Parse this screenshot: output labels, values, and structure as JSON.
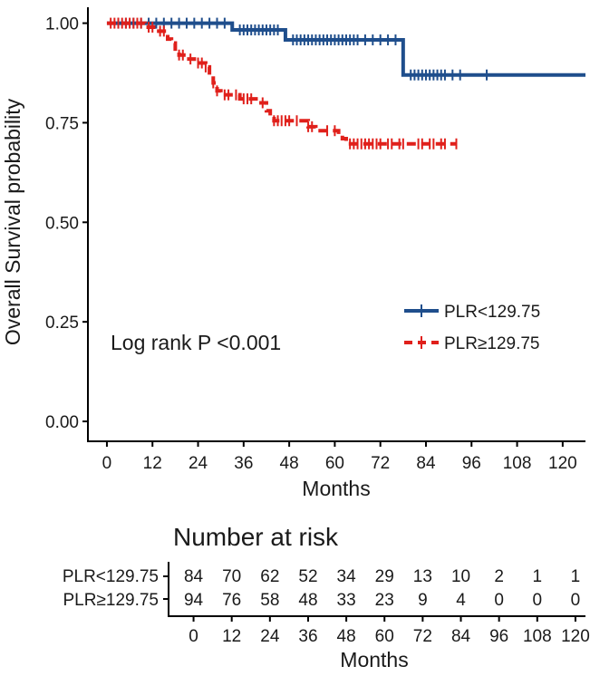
{
  "chart_data": {
    "type": "line",
    "subtype": "kaplan-meier",
    "title": "",
    "xlabel": "Months",
    "ylabel": "Overall Survival probability",
    "xlim": [
      -5,
      126
    ],
    "ylim": [
      -0.05,
      1.04
    ],
    "x_ticks": [
      0,
      12,
      24,
      36,
      48,
      60,
      72,
      84,
      96,
      108,
      120
    ],
    "y_ticks": [
      0.0,
      0.25,
      0.5,
      0.75,
      1.0
    ],
    "y_tick_labels": [
      "0.00",
      "0.25",
      "0.50",
      "0.75",
      "1.00"
    ],
    "annotation": "Log rank P <0.001",
    "legend_position": "right-middle",
    "series": [
      {
        "name": "PLR<129.75",
        "color": "#1f4e8c",
        "dash": "solid",
        "steps": [
          [
            0,
            1.0
          ],
          [
            33,
            0.983
          ],
          [
            47,
            0.958
          ],
          [
            78,
            0.87
          ],
          [
            126,
            0.87
          ]
        ],
        "censor": [
          3,
          5,
          7,
          9,
          11,
          13,
          15,
          17,
          19,
          21,
          23,
          25,
          27,
          29,
          31,
          35,
          36,
          37,
          38,
          39,
          40,
          41,
          42,
          43,
          44,
          45,
          49,
          50,
          51,
          52,
          53,
          54,
          55,
          56,
          57,
          58,
          59,
          60,
          61,
          62,
          63,
          64,
          65,
          66,
          68,
          70,
          72,
          74,
          76,
          80,
          81,
          82,
          83,
          84,
          85,
          86,
          87,
          88,
          89,
          91,
          93,
          100
        ]
      },
      {
        "name": "PLR≥129.75",
        "color": "#e0201b",
        "dash": "dashed",
        "steps": [
          [
            0,
            1.0
          ],
          [
            10,
            0.99
          ],
          [
            13,
            0.98
          ],
          [
            16,
            0.96
          ],
          [
            17,
            0.95
          ],
          [
            18,
            0.93
          ],
          [
            19,
            0.92
          ],
          [
            21,
            0.91
          ],
          [
            23,
            0.9
          ],
          [
            26,
            0.89
          ],
          [
            27,
            0.87
          ],
          [
            28,
            0.85
          ],
          [
            29,
            0.83
          ],
          [
            30,
            0.82
          ],
          [
            35,
            0.81
          ],
          [
            40,
            0.8
          ],
          [
            42,
            0.78
          ],
          [
            43,
            0.76
          ],
          [
            44,
            0.755
          ],
          [
            53,
            0.74
          ],
          [
            55,
            0.73
          ],
          [
            61,
            0.72
          ],
          [
            62,
            0.71
          ],
          [
            63,
            0.697
          ],
          [
            92,
            0.697
          ]
        ],
        "censor": [
          1,
          2,
          3,
          4,
          5,
          6,
          7,
          8,
          9,
          11,
          12,
          14,
          15,
          19,
          20,
          22,
          24,
          25,
          26,
          28,
          29,
          31,
          32,
          34,
          36,
          37,
          38,
          41,
          44,
          45,
          46,
          47,
          48,
          50,
          53,
          54,
          58,
          60,
          64,
          65,
          66,
          67,
          68,
          69,
          70,
          71,
          72,
          74,
          75,
          77,
          78,
          82,
          83,
          85,
          86,
          88,
          89,
          92
        ]
      }
    ]
  },
  "risk_table": {
    "title": "Number at risk",
    "xlabel": "Months",
    "time_points": [
      0,
      12,
      24,
      36,
      48,
      60,
      72,
      84,
      96,
      108,
      120
    ],
    "rows": [
      {
        "name": "PLR<129.75",
        "color": "#1f4e8c",
        "counts": [
          84,
          70,
          62,
          52,
          34,
          29,
          13,
          10,
          2,
          1,
          1
        ]
      },
      {
        "name": "PLR≥129.75",
        "color": "#e0201b",
        "counts": [
          94,
          76,
          58,
          48,
          33,
          23,
          9,
          4,
          0,
          0,
          0
        ]
      }
    ]
  }
}
